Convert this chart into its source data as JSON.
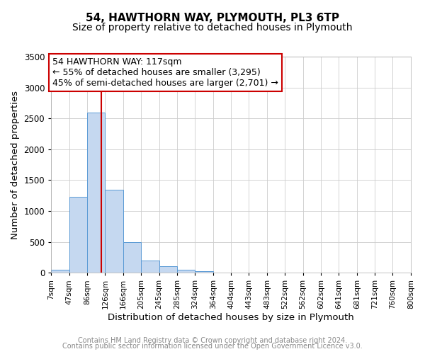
{
  "title": "54, HAWTHORN WAY, PLYMOUTH, PL3 6TP",
  "subtitle": "Size of property relative to detached houses in Plymouth",
  "xlabel": "Distribution of detached houses by size in Plymouth",
  "ylabel": "Number of detached properties",
  "bar_edges": [
    7,
    47,
    86,
    126,
    166,
    205,
    245,
    285,
    324,
    364,
    404,
    443,
    483,
    522,
    562,
    602,
    641,
    681,
    721,
    760,
    800
  ],
  "bar_heights": [
    50,
    1230,
    2600,
    1350,
    500,
    200,
    110,
    50,
    30,
    0,
    0,
    0,
    0,
    0,
    0,
    0,
    0,
    0,
    0,
    0
  ],
  "bar_color": "#c5d8f0",
  "bar_edgecolor": "#5b9bd5",
  "ylim": [
    0,
    3500
  ],
  "vline_color": "#cc0000",
  "vline_x": 117,
  "annotation_title": "54 HAWTHORN WAY: 117sqm",
  "annotation_line1": "← 55% of detached houses are smaller (3,295)",
  "annotation_line2": "45% of semi-detached houses are larger (2,701) →",
  "annotation_box_color": "#cc0000",
  "footer1": "Contains HM Land Registry data © Crown copyright and database right 2024.",
  "footer2": "Contains public sector information licensed under the Open Government Licence v3.0.",
  "bg_color": "#ffffff",
  "grid_color": "#cccccc",
  "tick_labels": [
    "7sqm",
    "47sqm",
    "86sqm",
    "126sqm",
    "166sqm",
    "205sqm",
    "245sqm",
    "285sqm",
    "324sqm",
    "364sqm",
    "404sqm",
    "443sqm",
    "483sqm",
    "522sqm",
    "562sqm",
    "602sqm",
    "641sqm",
    "681sqm",
    "721sqm",
    "760sqm",
    "800sqm"
  ],
  "title_fontsize": 11,
  "subtitle_fontsize": 10,
  "axis_label_fontsize": 9.5,
  "tick_fontsize": 7.5,
  "annotation_fontsize": 9,
  "footer_fontsize": 7
}
